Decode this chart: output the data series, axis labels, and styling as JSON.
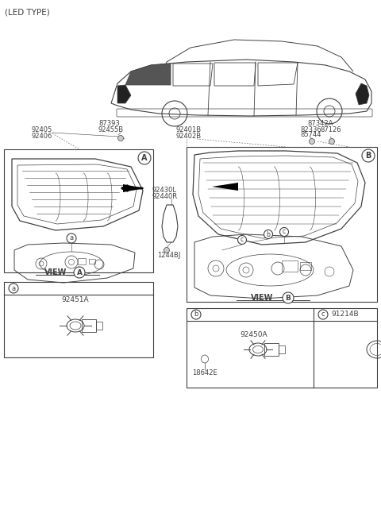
{
  "bg_color": "#ffffff",
  "lc": "#404040",
  "tc": "#404040",
  "figsize": [
    4.8,
    6.56
  ],
  "dpi": 100,
  "labels": {
    "led_type": "(LED TYPE)",
    "92405_92406": "92405\n92406",
    "87393": "87393",
    "92455B": "92455B",
    "92430L": "92430L",
    "92440R": "92440R",
    "1244BJ": "1244BJ",
    "92401B": "92401B",
    "92402B": "92402B",
    "87342A": "87342A",
    "82336": "82336",
    "87126": "87126",
    "85744": "85744",
    "view_A": "VIEW",
    "view_B": "VIEW",
    "92451A": "92451A",
    "92450A": "92450A",
    "18642E": "18642E",
    "91214B": "91214B"
  }
}
